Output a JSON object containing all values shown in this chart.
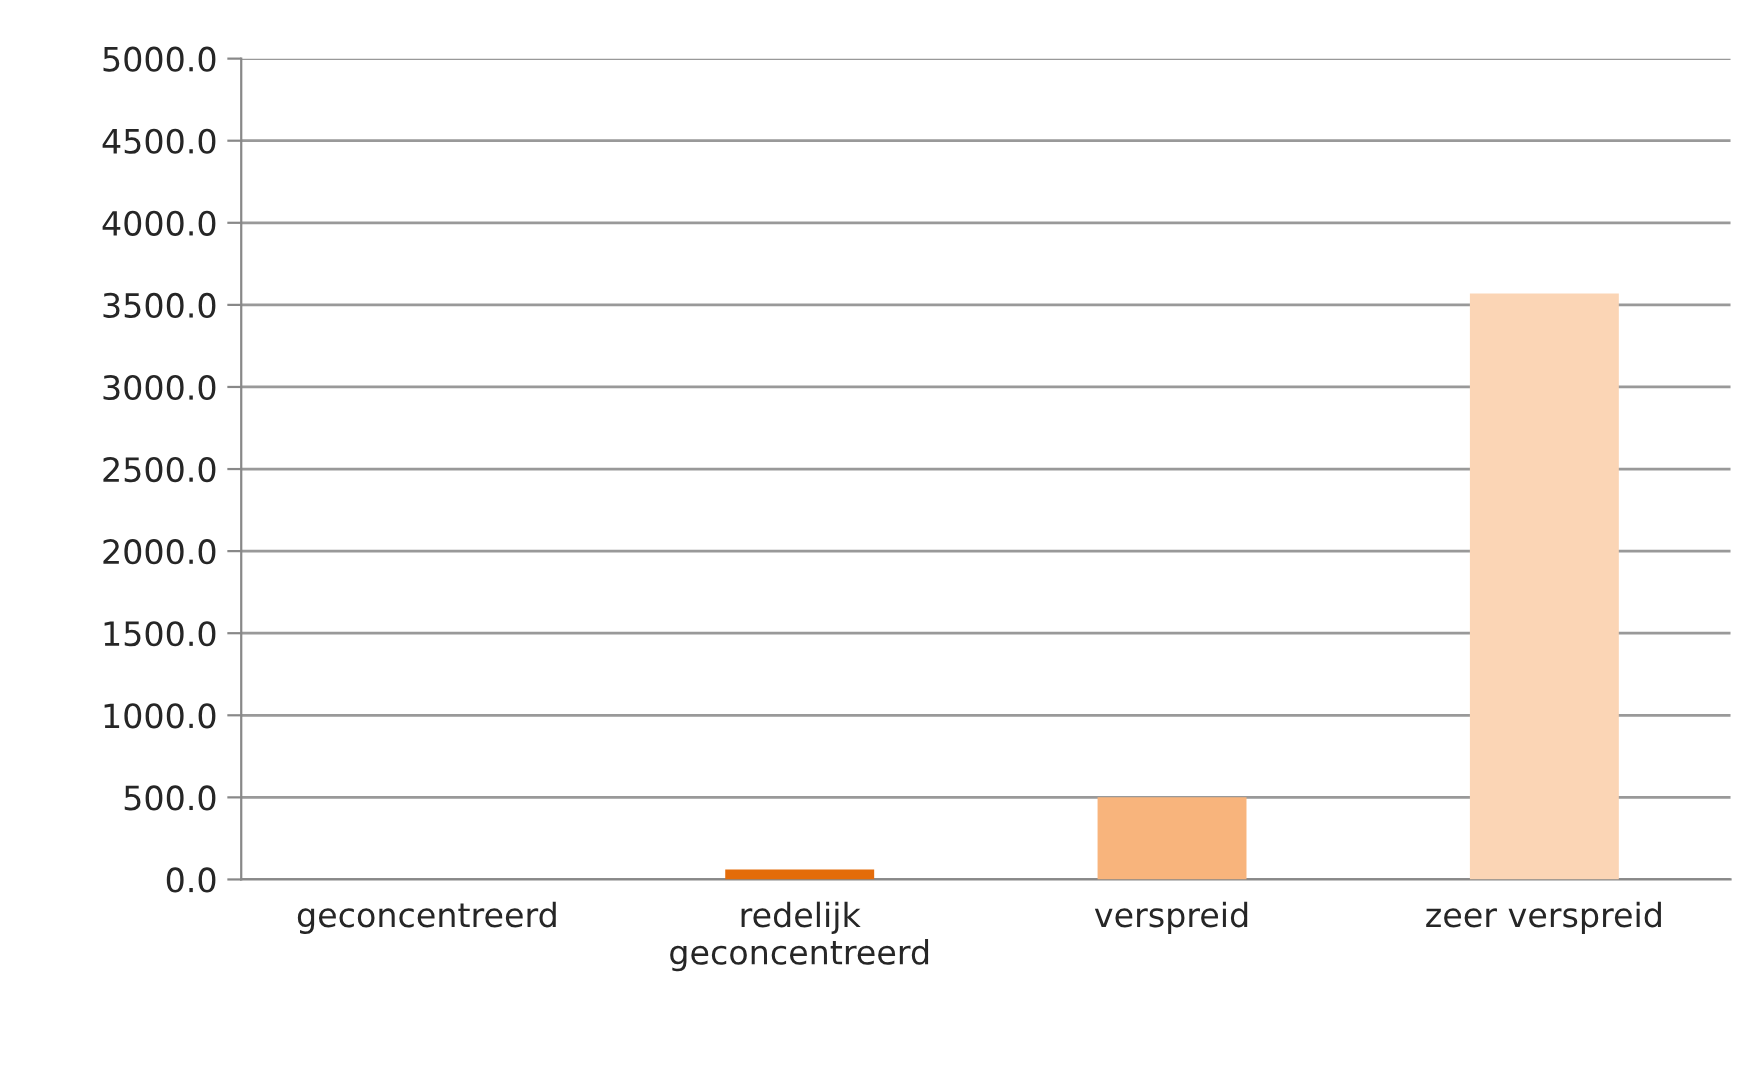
{
  "chart_data": {
    "type": "bar",
    "categories": [
      "geconcentreerd",
      "redelijk\ngeconcentreerd",
      "verspreid",
      "zeer verspreid"
    ],
    "values": [
      null,
      60,
      500,
      3570
    ],
    "colors": [
      null,
      "#e46c0a",
      "#f8b47c",
      "#fbd5b5"
    ],
    "ylim": [
      0,
      5000
    ],
    "yticks": [
      {
        "value": 0,
        "label": "0.0"
      },
      {
        "value": 500,
        "label": "500.0"
      },
      {
        "value": 1000,
        "label": "1000.0"
      },
      {
        "value": 1500,
        "label": "1500.0"
      },
      {
        "value": 2000,
        "label": "2000.0"
      },
      {
        "value": 2500,
        "label": "2500.0"
      },
      {
        "value": 3000,
        "label": "3000.0"
      },
      {
        "value": 3500,
        "label": "3500.0"
      },
      {
        "value": 4000,
        "label": "4000.0"
      },
      {
        "value": 4500,
        "label": "4500.0"
      },
      {
        "value": 5000,
        "label": "5000.0"
      }
    ],
    "grid": "y"
  }
}
